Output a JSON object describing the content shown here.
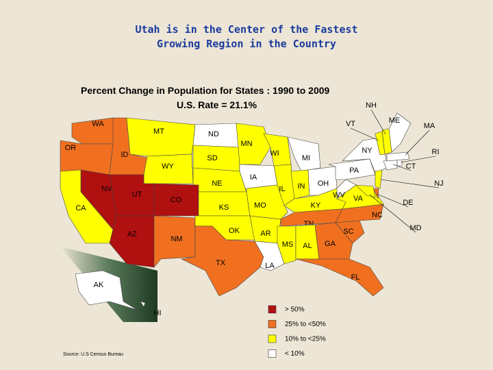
{
  "title": [
    "Utah is in the Center of the Fastest",
    "Growing Region in the Country"
  ],
  "subtitle": "Percent Change in Population for States : 1990 to 2009",
  "us_rate": "U.S. Rate = 21.1%",
  "states": [
    {
      "label": "WA",
      "color": "#f07020"
    },
    {
      "label": "OR",
      "color": "#f07020"
    },
    {
      "label": "ID",
      "color": "#f07020"
    },
    {
      "label": "MT",
      "color": "#ffff00"
    },
    {
      "label": "ND",
      "color": "#ffffff"
    },
    {
      "label": "SD",
      "color": "#ffff00"
    },
    {
      "label": "WY",
      "color": "#ffff00"
    },
    {
      "label": "NE",
      "color": "#ffff00"
    },
    {
      "label": "MN",
      "color": "#ffff00"
    },
    {
      "label": "NV",
      "color": "#b01010"
    },
    {
      "label": "CA",
      "color": "#ffff00"
    },
    {
      "label": "UT",
      "color": "#b01010"
    },
    {
      "label": "CO",
      "color": "#b01010"
    },
    {
      "label": "AZ",
      "color": "#b01010"
    },
    {
      "label": "NM",
      "color": "#f07020"
    },
    {
      "label": "KS",
      "color": "#ffff00"
    },
    {
      "label": "OK",
      "color": "#ffff00"
    },
    {
      "label": "TX",
      "color": "#f07020"
    },
    {
      "label": "IA",
      "color": "#ffffff"
    },
    {
      "label": "MO",
      "color": "#ffff00"
    },
    {
      "label": "AR",
      "color": "#ffff00"
    },
    {
      "label": "LA",
      "color": "#ffffff"
    },
    {
      "label": "WI",
      "color": "#ffff00"
    },
    {
      "label": "IL",
      "color": "#ffff00"
    },
    {
      "label": "MI",
      "color": "#ffffff"
    },
    {
      "label": "IN",
      "color": "#ffff00"
    },
    {
      "label": "OH",
      "color": "#ffffff"
    },
    {
      "label": "KY",
      "color": "#ffff00"
    },
    {
      "label": "TN",
      "color": "#f07020"
    },
    {
      "label": "MS",
      "color": "#ffff00"
    },
    {
      "label": "AL",
      "color": "#ffff00"
    },
    {
      "label": "GA",
      "color": "#f07020"
    },
    {
      "label": "FL",
      "color": "#f07020"
    },
    {
      "label": "SC",
      "color": "#f07020"
    },
    {
      "label": "NC",
      "color": "#f07020"
    },
    {
      "label": "VA",
      "color": "#ffff00"
    },
    {
      "label": "WV",
      "color": "#ffffff"
    },
    {
      "label": "PA",
      "color": "#ffffff"
    },
    {
      "label": "NY",
      "color": "#ffffff"
    },
    {
      "label": "NJ",
      "color": "#ffff00"
    },
    {
      "label": "DE",
      "color": "#f07020"
    },
    {
      "label": "MD",
      "color": "#ffff00"
    },
    {
      "label": "CT",
      "color": "#ffffff"
    },
    {
      "label": "RI",
      "color": "#ffffff"
    },
    {
      "label": "MA",
      "color": "#ffffff"
    },
    {
      "label": "ME",
      "color": "#ffffff"
    },
    {
      "label": "VT",
      "color": "#ffff00"
    },
    {
      "label": "NH",
      "color": "#ffff00"
    },
    {
      "label": "AK",
      "color": "#ffffff"
    },
    {
      "label": "HI",
      "color": "#ffffff"
    }
  ],
  "legend": [
    {
      "label": "> 50%",
      "color": "#b01010"
    },
    {
      "label": "25% to <50%",
      "color": "#f07020"
    },
    {
      "label": "10% to <25%",
      "color": "#ffff00"
    },
    {
      "label": "< 10%",
      "color": "#ffffff"
    }
  ],
  "source": "Source: U.S Census Bureau"
}
